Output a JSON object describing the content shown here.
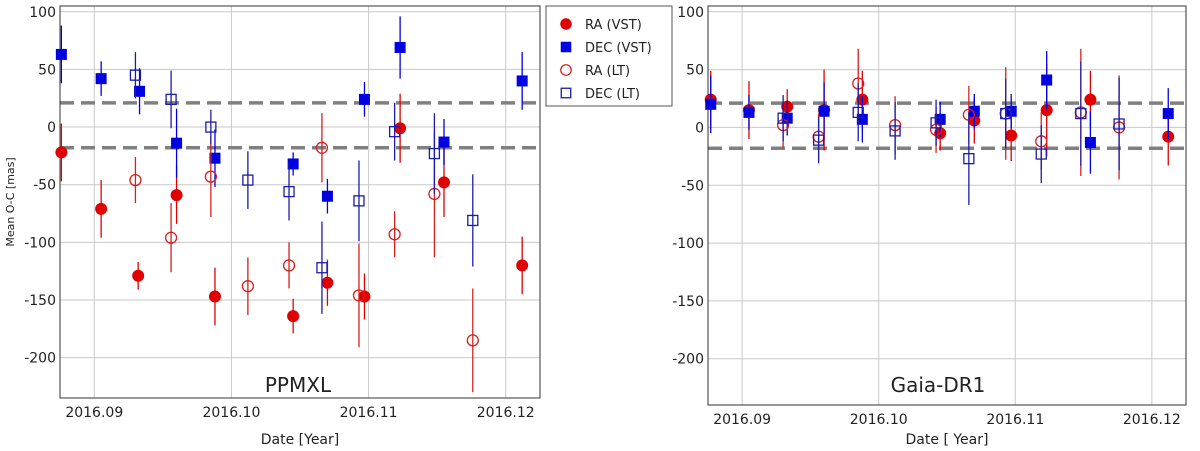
{
  "colors": {
    "vst_ra": "#e00000",
    "vst_dec": "#0000e0",
    "lt_ra": "#d42020",
    "lt_dec": "#1c1ca8",
    "grid": "#c8c8c8",
    "mean_lines": "#808080",
    "frame": "#333333"
  },
  "legend": {
    "items": [
      {
        "label": "RA (VST)",
        "series": "ra_vst",
        "marker": "filled-circle"
      },
      {
        "label": "DEC (VST)",
        "series": "dec_vst",
        "marker": "filled-square"
      },
      {
        "label": "RA (LT)",
        "series": "ra_lt",
        "marker": "open-circle"
      },
      {
        "label": "DEC (LT)",
        "series": "dec_lt",
        "marker": "open-square"
      }
    ]
  },
  "chart_data": [
    {
      "type": "scatter",
      "title": "PPMXL",
      "xlabel": "Date [Year]",
      "ylabel": "Mean O-C [mas]",
      "xlim": [
        2016.0875,
        2016.1225
      ],
      "ylim": [
        -235,
        105
      ],
      "xticks": [
        2016.09,
        2016.1,
        2016.11,
        2016.12
      ],
      "xtick_labels": [
        "2016.09",
        "2016.10",
        "2016.11",
        "2016.12"
      ],
      "yticks": [
        100,
        50,
        0,
        -50,
        -100,
        -150,
        -200
      ],
      "ytick_labels": [
        "100",
        "50",
        "0",
        "-50",
        "-100",
        "-150",
        "-200"
      ],
      "grid": true,
      "hlines": [
        21,
        -18
      ],
      "legend_position": "outside-top-right",
      "series": [
        {
          "name": "RA (VST)",
          "key": "ra_vst",
          "points": [
            {
              "x": 2016.0876,
              "y": -22,
              "err": 25
            },
            {
              "x": 2016.0905,
              "y": -71,
              "err": 25
            },
            {
              "x": 2016.0932,
              "y": -129,
              "err": 12
            },
            {
              "x": 2016.096,
              "y": -59,
              "err": 25
            },
            {
              "x": 2016.0988,
              "y": -147,
              "err": 25
            },
            {
              "x": 2016.1045,
              "y": -164,
              "err": 15
            },
            {
              "x": 2016.107,
              "y": -135,
              "err": 20
            },
            {
              "x": 2016.1097,
              "y": -147,
              "err": 20
            },
            {
              "x": 2016.1123,
              "y": -1,
              "err": 30
            },
            {
              "x": 2016.1155,
              "y": -48,
              "err": 30
            },
            {
              "x": 2016.1212,
              "y": -120,
              "err": 25
            }
          ]
        },
        {
          "name": "DEC (VST)",
          "key": "dec_vst",
          "points": [
            {
              "x": 2016.0876,
              "y": 63,
              "err": 25
            },
            {
              "x": 2016.0905,
              "y": 42,
              "err": 15
            },
            {
              "x": 2016.0933,
              "y": 31,
              "err": 20
            },
            {
              "x": 2016.096,
              "y": -14,
              "err": 30
            },
            {
              "x": 2016.0988,
              "y": -27,
              "err": 25
            },
            {
              "x": 2016.1045,
              "y": -32,
              "err": 10
            },
            {
              "x": 2016.107,
              "y": -60,
              "err": 15
            },
            {
              "x": 2016.1097,
              "y": 24,
              "err": 15
            },
            {
              "x": 2016.1123,
              "y": 69,
              "err": 27
            },
            {
              "x": 2016.1155,
              "y": -13,
              "err": 20
            },
            {
              "x": 2016.1212,
              "y": 40,
              "err": 25
            }
          ]
        },
        {
          "name": "RA (LT)",
          "key": "ra_lt",
          "points": [
            {
              "x": 2016.093,
              "y": -46,
              "err": 20
            },
            {
              "x": 2016.0956,
              "y": -96,
              "err": 30
            },
            {
              "x": 2016.0985,
              "y": -43,
              "err": 35
            },
            {
              "x": 2016.1012,
              "y": -138,
              "err": 25
            },
            {
              "x": 2016.1042,
              "y": -120,
              "err": 20
            },
            {
              "x": 2016.1066,
              "y": -18,
              "err": 30
            },
            {
              "x": 2016.1093,
              "y": -146,
              "err": 45
            },
            {
              "x": 2016.1119,
              "y": -93,
              "err": 20
            },
            {
              "x": 2016.1148,
              "y": -58,
              "err": 55
            },
            {
              "x": 2016.1176,
              "y": -185,
              "err": 45
            }
          ]
        },
        {
          "name": "DEC (LT)",
          "key": "dec_lt",
          "points": [
            {
              "x": 2016.093,
              "y": 45,
              "err": 20
            },
            {
              "x": 2016.0956,
              "y": 24,
              "err": 25
            },
            {
              "x": 2016.0985,
              "y": 0,
              "err": 15
            },
            {
              "x": 2016.1012,
              "y": -46,
              "err": 25
            },
            {
              "x": 2016.1042,
              "y": -56,
              "err": 25
            },
            {
              "x": 2016.1066,
              "y": -122,
              "err": 40
            },
            {
              "x": 2016.1093,
              "y": -64,
              "err": 35
            },
            {
              "x": 2016.1119,
              "y": -4,
              "err": 25
            },
            {
              "x": 2016.1148,
              "y": -23,
              "err": 35
            },
            {
              "x": 2016.1176,
              "y": -81,
              "err": 40
            }
          ]
        }
      ]
    },
    {
      "type": "scatter",
      "title": "Gaia-DR1",
      "xlabel": "Date [ Year]",
      "ylabel": "",
      "xlim": [
        2016.0875,
        2016.1225
      ],
      "ylim": [
        -240,
        105
      ],
      "xticks": [
        2016.09,
        2016.1,
        2016.11,
        2016.12
      ],
      "xtick_labels": [
        "2016.09",
        "2016.10",
        "2016.11",
        "2016.12"
      ],
      "yticks": [
        100,
        50,
        0,
        -50,
        -100,
        -150,
        -200
      ],
      "ytick_labels": [
        "100",
        "50",
        "0",
        "-50",
        "-100",
        "-150",
        "-200"
      ],
      "grid": true,
      "hlines": [
        21,
        -18
      ],
      "series": [
        {
          "name": "RA (VST)",
          "key": "ra_vst",
          "points": [
            {
              "x": 2016.0877,
              "y": 24,
              "err": 25
            },
            {
              "x": 2016.0905,
              "y": 15,
              "err": 25
            },
            {
              "x": 2016.0933,
              "y": 18,
              "err": 15
            },
            {
              "x": 2016.096,
              "y": 15,
              "err": 35
            },
            {
              "x": 2016.0988,
              "y": 24,
              "err": 25
            },
            {
              "x": 2016.1045,
              "y": -5,
              "err": 15
            },
            {
              "x": 2016.107,
              "y": 6,
              "err": 20
            },
            {
              "x": 2016.1097,
              "y": -7,
              "err": 22
            },
            {
              "x": 2016.1123,
              "y": 15,
              "err": 40
            },
            {
              "x": 2016.1155,
              "y": 24,
              "err": 25
            },
            {
              "x": 2016.1212,
              "y": -8,
              "err": 25
            }
          ]
        },
        {
          "name": "DEC (VST)",
          "key": "dec_vst",
          "points": [
            {
              "x": 2016.0877,
              "y": 20,
              "err": 25
            },
            {
              "x": 2016.0905,
              "y": 13,
              "err": 15
            },
            {
              "x": 2016.0933,
              "y": 8,
              "err": 15
            },
            {
              "x": 2016.096,
              "y": 14,
              "err": 25
            },
            {
              "x": 2016.0988,
              "y": 7,
              "err": 20
            },
            {
              "x": 2016.1045,
              "y": 7,
              "err": 15
            },
            {
              "x": 2016.107,
              "y": 14,
              "err": 15
            },
            {
              "x": 2016.1097,
              "y": 14,
              "err": 15
            },
            {
              "x": 2016.1123,
              "y": 41,
              "err": 25
            },
            {
              "x": 2016.1155,
              "y": -13,
              "err": 27
            },
            {
              "x": 2016.1212,
              "y": 12,
              "err": 22
            }
          ]
        },
        {
          "name": "RA (LT)",
          "key": "ra_lt",
          "points": [
            {
              "x": 2016.093,
              "y": 2,
              "err": 20
            },
            {
              "x": 2016.0956,
              "y": -8,
              "err": 20
            },
            {
              "x": 2016.0985,
              "y": 38,
              "err": 30
            },
            {
              "x": 2016.1012,
              "y": 2,
              "err": 25
            },
            {
              "x": 2016.1042,
              "y": -2,
              "err": 20
            },
            {
              "x": 2016.1066,
              "y": 11,
              "err": 25
            },
            {
              "x": 2016.1093,
              "y": 12,
              "err": 40
            },
            {
              "x": 2016.1119,
              "y": -12,
              "err": 25
            },
            {
              "x": 2016.1148,
              "y": 13,
              "err": 55
            },
            {
              "x": 2016.1176,
              "y": 0,
              "err": 45
            }
          ]
        },
        {
          "name": "DEC (LT)",
          "key": "dec_lt",
          "points": [
            {
              "x": 2016.093,
              "y": 8,
              "err": 20
            },
            {
              "x": 2016.0956,
              "y": -11,
              "err": 20
            },
            {
              "x": 2016.0985,
              "y": 13,
              "err": 25
            },
            {
              "x": 2016.1012,
              "y": -3,
              "err": 25
            },
            {
              "x": 2016.1042,
              "y": 4,
              "err": 20
            },
            {
              "x": 2016.1066,
              "y": -27,
              "err": 40
            },
            {
              "x": 2016.1093,
              "y": 12,
              "err": 30
            },
            {
              "x": 2016.1119,
              "y": -23,
              "err": 25
            },
            {
              "x": 2016.1148,
              "y": 12,
              "err": 45
            },
            {
              "x": 2016.1176,
              "y": 3,
              "err": 40
            }
          ]
        }
      ]
    }
  ]
}
